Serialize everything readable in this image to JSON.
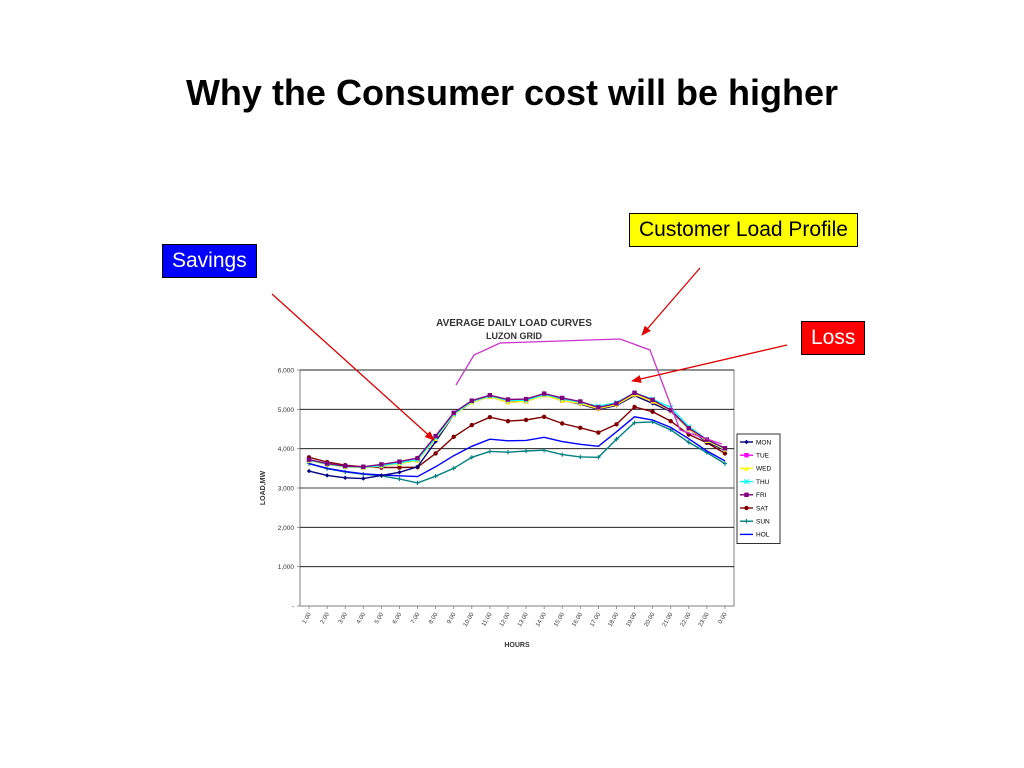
{
  "slide": {
    "title": "Why the Consumer cost will be higher"
  },
  "callouts": {
    "savings": "Savings",
    "customer_profile": "Customer Load Profile",
    "loss": "Loss"
  },
  "colors": {
    "savings_box": "#0000ff",
    "profile_box": "#ffff00",
    "loss_box": "#ff0000",
    "arrow": "#e00000",
    "profile_line": "#cc33cc"
  },
  "chart_data": {
    "type": "line",
    "title": "AVERAGE DAILY LOAD CURVES",
    "subtitle": "LUZON GRID",
    "xlabel": "HOURS",
    "ylabel": "LOAD,MW",
    "ylim": [
      0,
      6000
    ],
    "grid": true,
    "legend_position": "right",
    "y_tick_labels": [
      "-",
      "1,000",
      "2,000",
      "3,000",
      "4,000",
      "5,000",
      "6,000"
    ],
    "categories": [
      "1:00",
      "2:00",
      "3:00",
      "4:00",
      "5:00",
      "6:00",
      "7:00",
      "8:00",
      "9:00",
      "10:00",
      "11:00",
      "12:00",
      "13:00",
      "14:00",
      "15:00",
      "16:00",
      "17:00",
      "18:00",
      "19:00",
      "20:00",
      "21:00",
      "22:00",
      "23:00",
      "0:00"
    ],
    "series": [
      {
        "name": "MON",
        "color": "#000080",
        "marker": "diamond",
        "values": [
          3430,
          3320,
          3260,
          3240,
          3320,
          3400,
          3540,
          4180,
          4860,
          5180,
          5330,
          5180,
          5220,
          5380,
          5230,
          5130,
          5000,
          5100,
          5350,
          5150,
          4950,
          4500,
          4170,
          3960
        ]
      },
      {
        "name": "TUE",
        "color": "#ff00ff",
        "marker": "square",
        "values": [
          3700,
          3600,
          3540,
          3520,
          3560,
          3620,
          3700,
          4250,
          4860,
          5180,
          5320,
          5180,
          5200,
          5360,
          5220,
          5150,
          5020,
          5120,
          5380,
          5200,
          4970,
          4500,
          4200,
          3980
        ]
      },
      {
        "name": "WED",
        "color": "#ffff00",
        "marker": "triangle",
        "values": [
          3700,
          3600,
          3540,
          3520,
          3560,
          3620,
          3700,
          4250,
          4860,
          5180,
          5320,
          5180,
          5200,
          5360,
          5220,
          5150,
          5020,
          5120,
          5380,
          5200,
          4970,
          4500,
          4200,
          3980
        ]
      },
      {
        "name": "THU",
        "color": "#00ffff",
        "marker": "x",
        "values": [
          3710,
          3610,
          3550,
          3530,
          3570,
          3640,
          3720,
          4280,
          4880,
          5200,
          5340,
          5230,
          5230,
          5380,
          5270,
          5180,
          5080,
          5170,
          5420,
          5260,
          5050,
          4560,
          4230,
          4000
        ]
      },
      {
        "name": "FRI",
        "color": "#800080",
        "marker": "square",
        "values": [
          3720,
          3620,
          3560,
          3540,
          3600,
          3670,
          3760,
          4320,
          4910,
          5220,
          5360,
          5250,
          5260,
          5400,
          5290,
          5200,
          5050,
          5150,
          5420,
          5240,
          4980,
          4520,
          4230,
          4010
        ]
      },
      {
        "name": "SAT",
        "color": "#800000",
        "marker": "circle",
        "values": [
          3780,
          3660,
          3580,
          3540,
          3520,
          3520,
          3530,
          3880,
          4300,
          4600,
          4800,
          4700,
          4730,
          4810,
          4640,
          4530,
          4410,
          4620,
          5060,
          4940,
          4700,
          4360,
          4150,
          3880
        ]
      },
      {
        "name": "SUN",
        "color": "#008080",
        "marker": "plus",
        "values": [
          3620,
          3490,
          3410,
          3350,
          3310,
          3230,
          3130,
          3300,
          3500,
          3780,
          3930,
          3910,
          3940,
          3960,
          3850,
          3790,
          3780,
          4240,
          4660,
          4680,
          4480,
          4160,
          3900,
          3620
        ]
      },
      {
        "name": "HOL",
        "color": "#0000ff",
        "marker": "none",
        "values": [
          3620,
          3500,
          3420,
          3360,
          3330,
          3310,
          3290,
          3540,
          3820,
          4060,
          4240,
          4200,
          4210,
          4290,
          4180,
          4110,
          4060,
          4430,
          4810,
          4730,
          4540,
          4250,
          3940,
          3690
        ]
      }
    ]
  }
}
